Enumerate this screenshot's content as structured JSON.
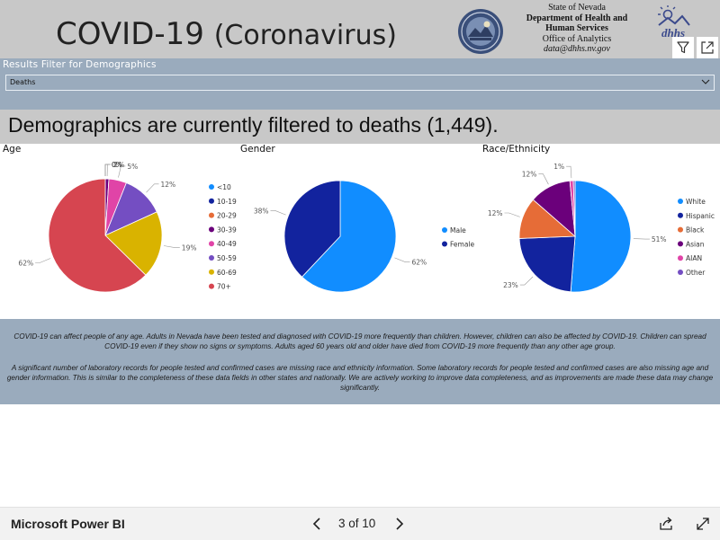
{
  "header": {
    "title_main": "COVID-19",
    "title_sub": "(Coronavirus)",
    "agency_lines": [
      {
        "text": "State of Nevada",
        "style": "normal"
      },
      {
        "text": "Department of Health and",
        "style": "bold"
      },
      {
        "text": "Human Services",
        "style": "bold"
      },
      {
        "text": "Office of Analytics",
        "style": "normal"
      },
      {
        "text": "data@dhhs.nv.gov",
        "style": "italic"
      }
    ],
    "logo_text": "dhhs"
  },
  "filter": {
    "label": "Results Filter for Demographics",
    "value": "Deaths"
  },
  "banner": "Demographics are currently filtered to deaths (1,449).",
  "chart_data": [
    {
      "type": "pie",
      "title": "Age",
      "categories": [
        "<10",
        "10-19",
        "20-29",
        "30-39",
        "40-49",
        "50-59",
        "60-69",
        "70+"
      ],
      "values": [
        0,
        0,
        0,
        1,
        5,
        12,
        19,
        62
      ],
      "labels": [
        "0%",
        "0%",
        "0%",
        "1%",
        "5%",
        "12%",
        "19%",
        "62%"
      ],
      "colors": [
        "#118dff",
        "#12239e",
        "#e66c37",
        "#6b007b",
        "#e044a7",
        "#744ec2",
        "#d9b300",
        "#d64550"
      ],
      "legend": "right"
    },
    {
      "type": "pie",
      "title": "Gender",
      "categories": [
        "Male",
        "Female"
      ],
      "values": [
        62,
        38
      ],
      "labels": [
        "62%",
        "38%"
      ],
      "colors": [
        "#118dff",
        "#12239e"
      ],
      "legend": "right"
    },
    {
      "type": "pie",
      "title": "Race/Ethnicity",
      "categories": [
        "White",
        "Hispanic",
        "Black",
        "Asian",
        "AIAN",
        "Other"
      ],
      "values": [
        51,
        23,
        12,
        12,
        1,
        0.5
      ],
      "labels": [
        "51%",
        "23%",
        "12%",
        "12%",
        "1%",
        ""
      ],
      "colors": [
        "#118dff",
        "#12239e",
        "#e66c37",
        "#6b007b",
        "#e044a7",
        "#744ec2"
      ],
      "legend": "right"
    }
  ],
  "notes": [
    "COVID-19 can affect people of any age.  Adults in Nevada have been tested and diagnosed with COVID-19 more frequently than children.  However, children can also be affected by COVID-19.  Children can spread COVID-19 even if they show no signs or symptoms.  Adults aged 60 years old and older have died from COVID-19 more frequently than any other age group.",
    "A significant number of laboratory records for people tested and confirmed cases are missing race and ethnicity information. Some laboratory records for people tested and confirmed cases are also missing age and gender information.  This is similar to the completeness of these data fields in other states and nationally.  We are actively working to improve data completeness, and as improvements are made these data may change significantly."
  ],
  "footer": {
    "brand": "Microsoft Power BI",
    "page_indicator": "3 of 10"
  }
}
